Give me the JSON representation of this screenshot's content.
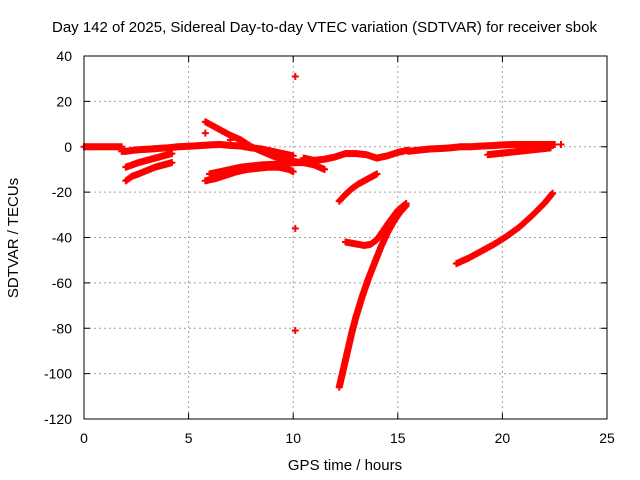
{
  "chart_data": {
    "type": "scatter",
    "title": "Day 142 of 2025, Sidereal Day-to-day VTEC variation (SDTVAR) for receiver sbok",
    "xlabel": "GPS time / hours",
    "ylabel": "SDTVAR / TECUs",
    "xlim": [
      0,
      25
    ],
    "ylim": [
      -120,
      40
    ],
    "x_ticks": [
      0,
      5,
      10,
      15,
      20,
      25
    ],
    "y_ticks": [
      -120,
      -100,
      -80,
      -60,
      -40,
      -20,
      0,
      20,
      40
    ],
    "x_tick_labels": [
      "0",
      "5",
      "10",
      "15",
      "20",
      "25"
    ],
    "y_tick_labels": [
      "-120",
      "-100",
      "-80",
      "-60",
      "-40",
      "-20",
      "0",
      "20",
      "40"
    ],
    "grid": true,
    "legend": false,
    "marker": "plus",
    "color": "#ff0000",
    "series": [
      {
        "x": [
          0,
          0.3,
          0.6,
          0.9,
          1.2,
          1.5,
          1.8
        ],
        "y": [
          0,
          0,
          0,
          0,
          0,
          0,
          0
        ]
      },
      {
        "x": [
          1.8,
          2.0,
          2.4,
          2.8,
          3.2,
          3.6,
          4.0,
          4.5,
          5.0,
          5.5,
          6.0,
          6.5,
          7.0,
          7.5,
          8.0,
          8.5,
          9.0,
          9.5,
          10.0
        ],
        "y": [
          -2,
          -2,
          -1.5,
          -1.2,
          -1,
          -0.7,
          -0.5,
          0,
          0.2,
          0.5,
          0.8,
          1,
          0.6,
          0.3,
          -0.5,
          -1,
          -2,
          -3,
          -4
        ]
      },
      {
        "x": [
          2.0,
          2.3,
          2.6,
          3.0,
          3.4,
          3.8,
          4.2
        ],
        "y": [
          -9,
          -8,
          -7,
          -6,
          -5,
          -4,
          -3
        ]
      },
      {
        "x": [
          2.0,
          2.3,
          2.6,
          3.0,
          3.4,
          3.8,
          4.2
        ],
        "y": [
          -15,
          -13,
          -12,
          -10.5,
          -9,
          -8,
          -7
        ]
      },
      {
        "x": [
          5.8,
          6.2,
          6.6,
          7.0,
          7.5,
          8.0,
          8.5,
          9.0,
          9.5,
          10.0,
          10.5
        ],
        "y": [
          11,
          9,
          7,
          5,
          3,
          0,
          -2,
          -4,
          -5.5,
          -6.5,
          -7
        ]
      },
      {
        "x": [
          5.8,
          6.3,
          6.8,
          7.3,
          7.8,
          8.3,
          8.8,
          9.3,
          9.8,
          10.0
        ],
        "y": [
          -15,
          -14,
          -12.5,
          -11,
          -10,
          -9.5,
          -9,
          -9,
          -10,
          -11
        ]
      },
      {
        "x": [
          6.0,
          6.5,
          7.0,
          7.5,
          8.0,
          8.5,
          9.0,
          9.5,
          10.0,
          10.5,
          11.0,
          11.5
        ],
        "y": [
          -12,
          -11,
          -10,
          -9,
          -8.5,
          -8,
          -7.8,
          -7.5,
          -7,
          -7,
          -8,
          -10
        ]
      },
      {
        "x": [
          5.8
        ],
        "y": [
          6
        ]
      },
      {
        "x": [
          7.0
        ],
        "y": [
          3
        ]
      },
      {
        "x": [
          10.1
        ],
        "y": [
          31
        ]
      },
      {
        "x": [
          10.1
        ],
        "y": [
          -36
        ]
      },
      {
        "x": [
          10.1
        ],
        "y": [
          -81
        ]
      },
      {
        "x": [
          10.5,
          11.0,
          11.5,
          12.0,
          12.5,
          13.0,
          13.5,
          14.0,
          14.5,
          15.0,
          15.5
        ],
        "y": [
          -5,
          -6,
          -5.5,
          -4.5,
          -3,
          -3,
          -3.5,
          -5,
          -4,
          -2.5,
          -1.5
        ]
      },
      {
        "x": [
          15.5,
          16.0,
          16.5,
          17.0,
          17.5,
          18.0,
          18.5,
          19.0,
          19.5,
          20.0,
          20.5,
          21.0,
          21.5,
          22.0,
          22.5
        ],
        "y": [
          -2,
          -1.5,
          -1,
          -0.8,
          -0.5,
          0,
          0,
          0.3,
          0.5,
          0.8,
          1,
          1,
          1,
          1,
          1
        ]
      },
      {
        "x": [
          19.3,
          19.8,
          20.3,
          20.8,
          21.3,
          21.8,
          22.3
        ],
        "y": [
          -3.5,
          -3,
          -2.5,
          -2,
          -1.5,
          -1,
          -0.5
        ]
      },
      {
        "x": [
          22.8
        ],
        "y": [
          1
        ]
      },
      {
        "x": [
          12.2,
          12.5,
          12.8,
          13.1,
          13.4,
          13.7,
          14.0
        ],
        "y": [
          -24,
          -21,
          -18.5,
          -16.5,
          -15,
          -13.5,
          -12
        ]
      },
      {
        "x": [
          12.5,
          12.8,
          13.1,
          13.4,
          13.7,
          14.0,
          14.3,
          14.6,
          15.0,
          15.4
        ],
        "y": [
          -42,
          -42.5,
          -43,
          -43.5,
          -43,
          -41,
          -37,
          -33,
          -28,
          -25
        ]
      },
      {
        "x": [
          12.2,
          12.4,
          12.6,
          12.8,
          13.0,
          13.3,
          13.6,
          13.9,
          14.2,
          14.5,
          14.8,
          15.1,
          15.4
        ],
        "y": [
          -106,
          -98,
          -90,
          -82,
          -75,
          -66,
          -58,
          -51,
          -44,
          -38,
          -33,
          -29,
          -26
        ]
      },
      {
        "x": [
          17.8,
          18.4,
          19.0,
          19.6,
          20.2,
          20.8,
          21.4,
          22.0,
          22.4
        ],
        "y": [
          -51.5,
          -49,
          -46,
          -43,
          -39.5,
          -35.5,
          -30.5,
          -25,
          -20.5
        ]
      }
    ]
  }
}
